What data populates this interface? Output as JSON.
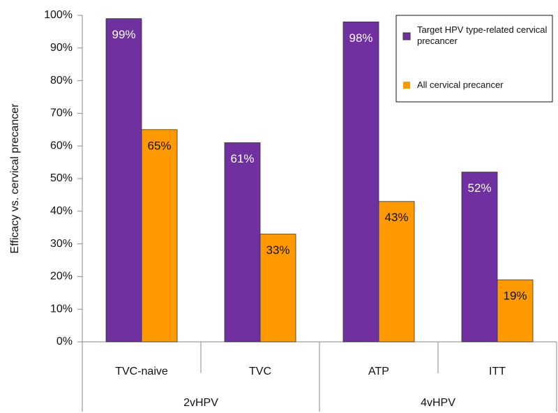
{
  "chart_data": {
    "type": "bar",
    "y_label": "Efficacy vs. cervical precancer",
    "categories": [
      "TVC-naive",
      "TVC",
      "ATP",
      "ITT"
    ],
    "groups": [
      "2vHPV",
      "4vHPV"
    ],
    "series": [
      {
        "name": "Target HPV type-related cervical precancer",
        "color": "#7030a0",
        "values": [
          99,
          61,
          98,
          52
        ],
        "value_labels": [
          "99%",
          "61%",
          "98%",
          "52%"
        ]
      },
      {
        "name": "All cervical precancer",
        "color": "#ff9900",
        "values": [
          65,
          33,
          43,
          19
        ],
        "value_labels": [
          "65%",
          "33%",
          "43%",
          "19%"
        ]
      }
    ],
    "ylim": [
      0,
      100
    ],
    "yticks": [
      {
        "value": 0,
        "label": "0%"
      },
      {
        "value": 10,
        "label": "10%"
      },
      {
        "value": 20,
        "label": "20%"
      },
      {
        "value": 30,
        "label": "30%"
      },
      {
        "value": 40,
        "label": "40%"
      },
      {
        "value": 50,
        "label": "50%"
      },
      {
        "value": 60,
        "label": "60%"
      },
      {
        "value": 70,
        "label": "70%"
      },
      {
        "value": 80,
        "label": "80%"
      },
      {
        "value": 90,
        "label": "90%"
      },
      {
        "value": 100,
        "label": "100%"
      }
    ],
    "legend_position": "upper right"
  }
}
